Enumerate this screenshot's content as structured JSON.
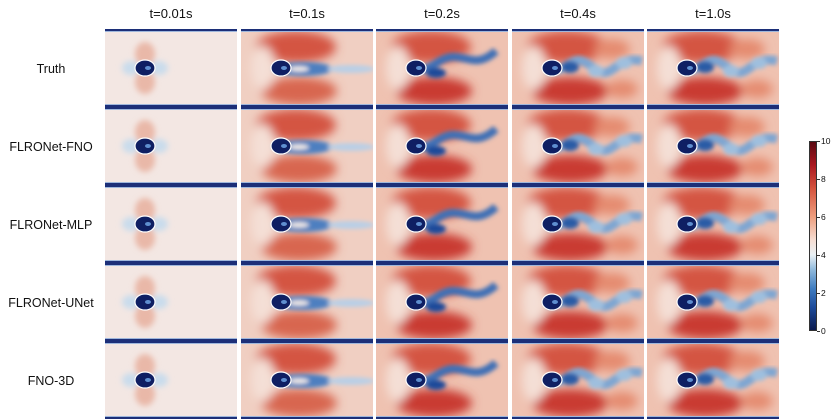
{
  "figure": {
    "columns": [
      "t=0.01s",
      "t=0.1s",
      "t=0.2s",
      "t=0.4s",
      "t=1.0s"
    ],
    "rows": [
      "Truth",
      "FLRONet-FNO",
      "FLRONet-MLP",
      "FLRONet-UNet",
      "FNO-3D"
    ],
    "colorbar": {
      "ticks": [
        "10",
        "8",
        "6",
        "4",
        "2",
        "0"
      ],
      "range": [
        0,
        10
      ],
      "colors": [
        "#0b1a4f",
        "#3f7cc0",
        "#eaf1f5",
        "#ee9f7f",
        "#a8161f",
        "#5b0a12"
      ]
    }
  }
}
